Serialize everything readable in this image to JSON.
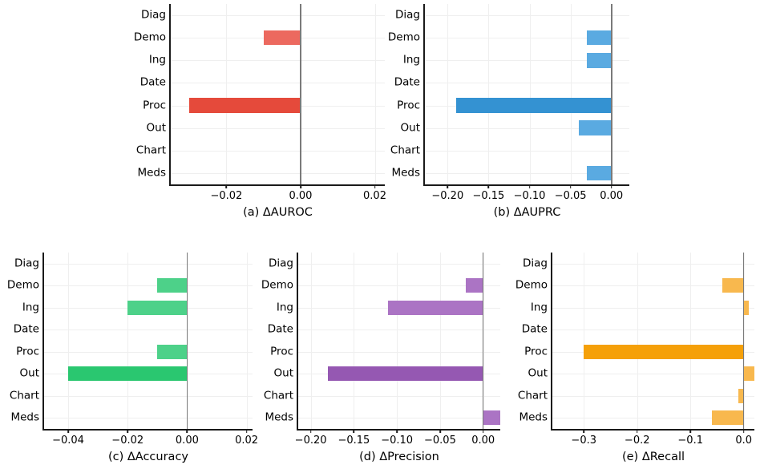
{
  "style": {
    "background": "#FFFFFF",
    "grid_color": "#EFEFEF",
    "zero_line_color": "#7A7A7A",
    "spine_color": "#1A1A1A",
    "text_color": "#000000"
  },
  "chart_data": [
    {
      "id": "a",
      "type": "bar",
      "orientation": "horizontal",
      "title": "(a) ΔAUROC",
      "categories": [
        "Diag",
        "Demo",
        "Ing",
        "Date",
        "Proc",
        "Out",
        "Chart",
        "Meds"
      ],
      "values": [
        0,
        -0.01,
        0,
        0,
        -0.03,
        0,
        0,
        0
      ],
      "highlight": "Proc",
      "xlim": [
        -0.035,
        0.0227
      ],
      "xticks": [
        -0.02,
        0,
        0.02
      ],
      "xtick_labels": [
        "−0.02",
        "0.00",
        "0.02"
      ],
      "color_light": "#EC695F",
      "color_strong": "#E54A3B",
      "grid": true,
      "legend": "none"
    },
    {
      "id": "b",
      "type": "bar",
      "orientation": "horizontal",
      "title": "(b) ΔAUPRC",
      "categories": [
        "Diag",
        "Demo",
        "Ing",
        "Date",
        "Proc",
        "Out",
        "Chart",
        "Meds"
      ],
      "values": [
        0,
        -0.03,
        -0.03,
        0,
        -0.19,
        -0.04,
        0,
        -0.03
      ],
      "highlight": "Proc",
      "xlim": [
        -0.2277,
        0.0218
      ],
      "xticks": [
        -0.2,
        -0.15,
        -0.1,
        -0.05,
        0
      ],
      "xtick_labels": [
        "−0.20",
        "−0.15",
        "−0.10",
        "−0.05",
        "0.00"
      ],
      "color_light": "#5AAAE1",
      "color_strong": "#3492D2",
      "grid": true,
      "legend": "none"
    },
    {
      "id": "c",
      "type": "bar",
      "orientation": "horizontal",
      "title": "(c) ΔAccuracy",
      "categories": [
        "Diag",
        "Demo",
        "Ing",
        "Date",
        "Proc",
        "Out",
        "Chart",
        "Meds"
      ],
      "values": [
        0,
        -0.01,
        -0.02,
        0,
        -0.01,
        -0.04,
        0,
        0
      ],
      "highlight": "Out",
      "xlim": [
        -0.0481,
        0.022
      ],
      "xticks": [
        -0.04,
        -0.02,
        0,
        0.02
      ],
      "xtick_labels": [
        "−0.04",
        "−0.02",
        "0.00",
        "0.02"
      ],
      "color_light": "#4DD189",
      "color_strong": "#2AC770",
      "grid": true,
      "legend": "none"
    },
    {
      "id": "d",
      "type": "bar",
      "orientation": "horizontal",
      "title": "(d) ΔPrecision",
      "categories": [
        "Diag",
        "Demo",
        "Ing",
        "Date",
        "Proc",
        "Out",
        "Chart",
        "Meds"
      ],
      "values": [
        0,
        -0.02,
        -0.11,
        0,
        0,
        -0.18,
        0,
        0.02
      ],
      "highlight": "Out",
      "xlim": [
        -0.2145,
        0.0198
      ],
      "xticks": [
        -0.2,
        -0.15,
        -0.1,
        -0.05,
        0
      ],
      "xtick_labels": [
        "−0.20",
        "−0.15",
        "−0.10",
        "−0.05",
        "0.00"
      ],
      "color_light": "#AB74C4",
      "color_strong": "#9558B2",
      "grid": true,
      "legend": "none"
    },
    {
      "id": "e",
      "type": "bar",
      "orientation": "horizontal",
      "title": "(e) ΔRecall",
      "categories": [
        "Diag",
        "Demo",
        "Ing",
        "Date",
        "Proc",
        "Out",
        "Chart",
        "Meds"
      ],
      "values": [
        0,
        -0.04,
        0.01,
        0,
        -0.3,
        0.02,
        -0.01,
        -0.06
      ],
      "highlight": "Proc",
      "xlim": [
        -0.359,
        0.02
      ],
      "xticks": [
        -0.3,
        -0.2,
        -0.1,
        0
      ],
      "xtick_labels": [
        "−0.3",
        "−0.2",
        "−0.1",
        "0.0"
      ],
      "color_light": "#F8B84E",
      "color_strong": "#F5A009",
      "grid": true,
      "legend": "none"
    }
  ]
}
